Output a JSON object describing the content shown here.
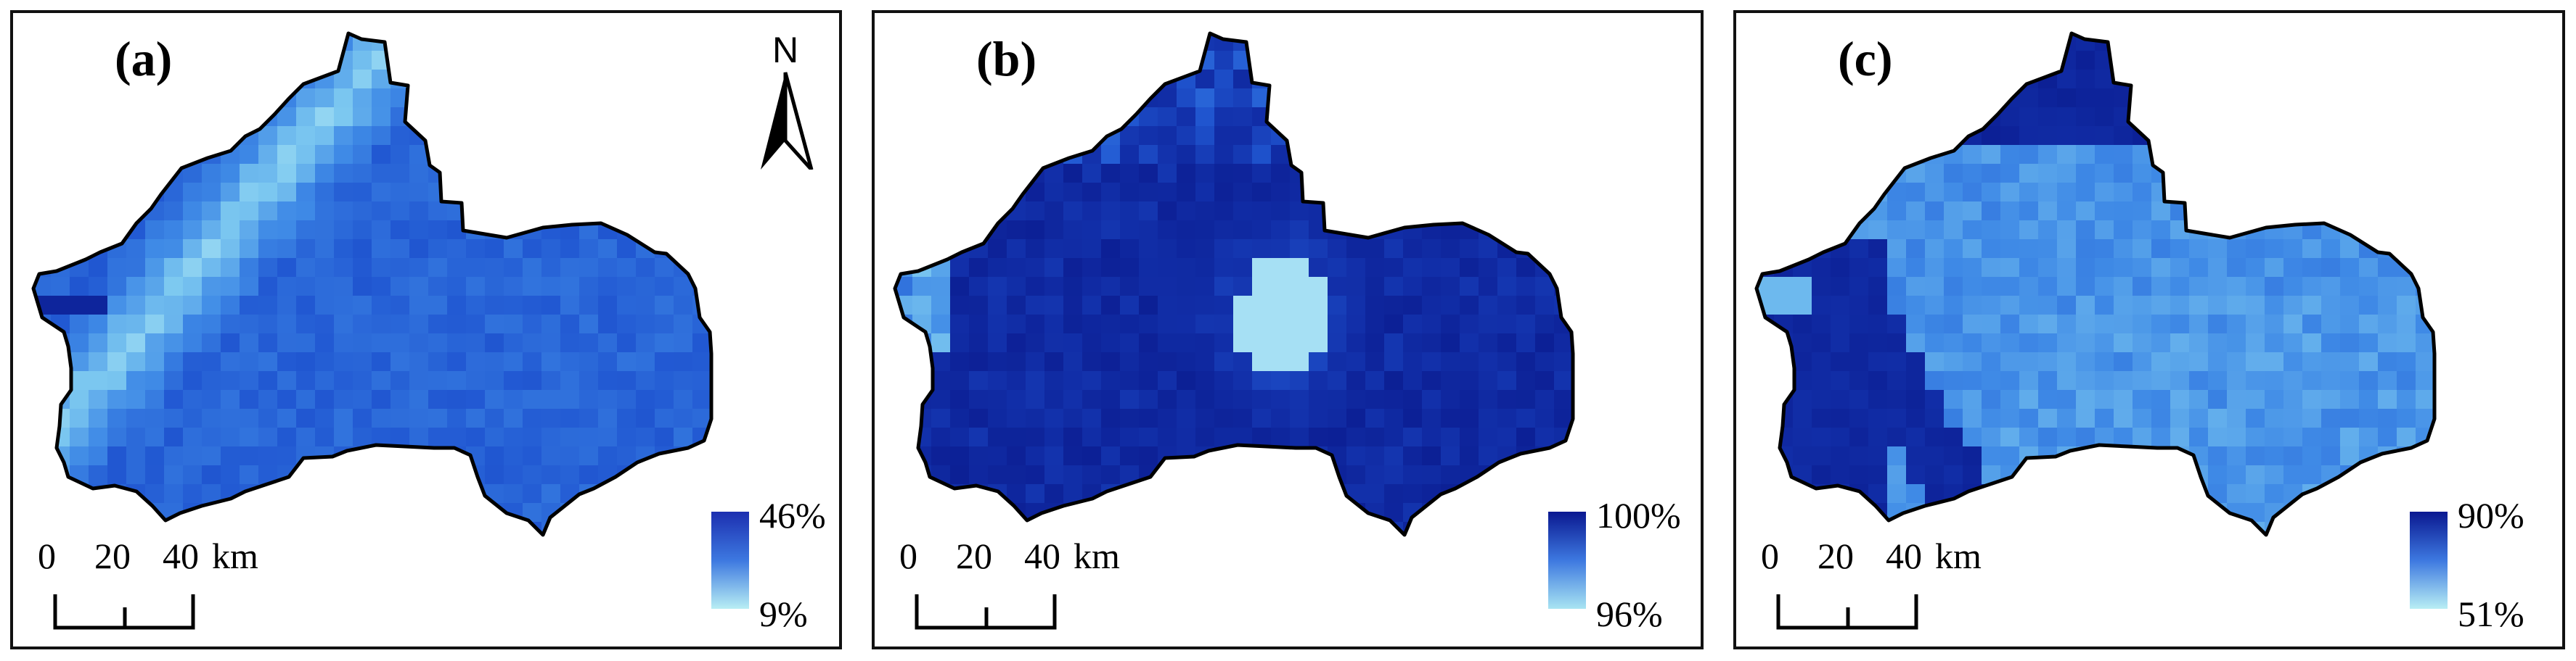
{
  "figure": {
    "panels": [
      {
        "label": "(a)",
        "legend": {
          "max": "46%",
          "min": "9%",
          "color_max": "#1c2fb0",
          "color_min": "#b8eef4"
        },
        "pattern": "a",
        "show_north": true
      },
      {
        "label": "(b)",
        "legend": {
          "max": "100%",
          "min": "96%",
          "color_max": "#0a1890",
          "color_min": "#a8e4f2"
        },
        "pattern": "b",
        "show_north": false
      },
      {
        "label": "(c)",
        "legend": {
          "max": "90%",
          "min": "51%",
          "color_max": "#0a1890",
          "color_min": "#b8eef4"
        },
        "pattern": "c",
        "show_north": false
      }
    ],
    "scale_bar": {
      "ticks": [
        "0",
        "20",
        "40"
      ],
      "unit": "km"
    },
    "north_arrow": {
      "label": "N"
    }
  }
}
